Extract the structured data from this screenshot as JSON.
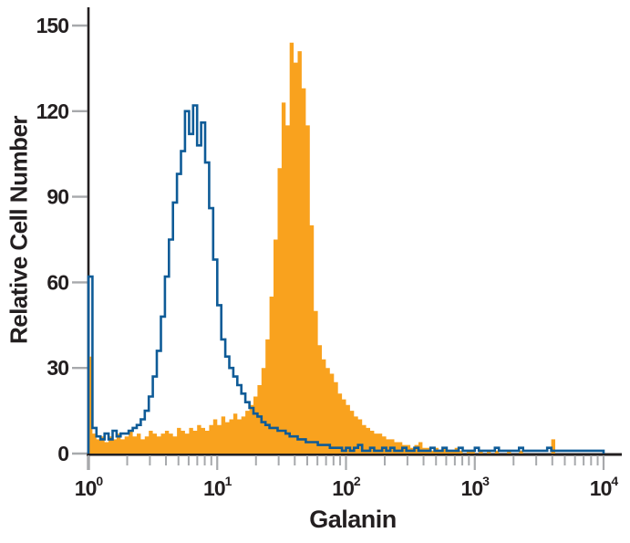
{
  "figure": {
    "background": "#FFFFFF",
    "text_color": "#231F20",
    "axis_color": "#231F20",
    "tick_color": "#A7A9AC"
  },
  "chart_data": {
    "type": "histogram",
    "subtype": "flow-cytometry-overlay",
    "title": "",
    "xlabel": "Galanin",
    "ylabel": "Relative Cell Number",
    "x_scale": "log10",
    "x_log_range": [
      0,
      4
    ],
    "x_tick_base": "10",
    "x_tick_exponents": [
      0,
      1,
      2,
      3,
      4
    ],
    "y_ticks": [
      0,
      30,
      60,
      90,
      120,
      150
    ],
    "y_axis_max": 150,
    "grid": false,
    "legend": "none",
    "bins_per_decade": 32,
    "bin_log_width": 0.03125,
    "series": [
      {
        "id": "open-outline-histogram",
        "render": "outline",
        "color": "#0E5B97",
        "heights": [
          62,
          9,
          6,
          5,
          7,
          5,
          8,
          6,
          7,
          7,
          8,
          9,
          10,
          12,
          15,
          20,
          27,
          36,
          48,
          62,
          75,
          88,
          98,
          106,
          120,
          112,
          122,
          108,
          116,
          102,
          86,
          68,
          52,
          40,
          34,
          30,
          27,
          24,
          21,
          18,
          16,
          14,
          13,
          11,
          10,
          9,
          9,
          8,
          8,
          7,
          6,
          6,
          5,
          5,
          4,
          4,
          4,
          3,
          3,
          3,
          2,
          2,
          2,
          1,
          2,
          1,
          2,
          3,
          1,
          1,
          2,
          1,
          1,
          2,
          1,
          2,
          1,
          1,
          2,
          1,
          1,
          2,
          1,
          1,
          1,
          2,
          1,
          1,
          2,
          1,
          1,
          1,
          2,
          1,
          1,
          1,
          2,
          1,
          1,
          1,
          1,
          2,
          1,
          1,
          1,
          1,
          1,
          2,
          1,
          1,
          1,
          1,
          1,
          1,
          2,
          1,
          1,
          1,
          1,
          1,
          1,
          1,
          1,
          1,
          1,
          1,
          1,
          1
        ]
      },
      {
        "id": "filled-histogram",
        "render": "filled",
        "color": "#F9A21E",
        "heights": [
          34,
          7,
          5,
          6,
          4,
          6,
          5,
          7,
          5,
          6,
          8,
          6,
          7,
          5,
          6,
          8,
          7,
          6,
          7,
          8,
          7,
          6,
          9,
          8,
          7,
          9,
          8,
          10,
          9,
          8,
          10,
          12,
          10,
          13,
          11,
          12,
          14,
          12,
          13,
          15,
          17,
          20,
          24,
          30,
          40,
          55,
          75,
          100,
          123,
          115,
          144,
          137,
          141,
          128,
          115,
          80,
          50,
          38,
          33,
          30,
          28,
          25,
          21,
          19,
          17,
          15,
          13,
          12,
          10,
          9,
          8,
          7,
          7,
          6,
          5,
          5,
          4,
          4,
          3,
          3,
          2,
          3,
          4,
          2,
          2,
          1,
          2,
          1,
          2,
          1,
          1,
          2,
          1,
          0,
          1,
          1,
          0,
          1,
          0,
          1,
          0,
          1,
          0,
          0,
          1,
          0,
          0,
          1,
          0,
          0,
          0,
          0,
          0,
          0,
          0,
          5,
          0,
          0,
          0,
          0,
          0,
          0,
          0,
          0,
          0,
          0,
          0,
          0
        ]
      }
    ]
  }
}
